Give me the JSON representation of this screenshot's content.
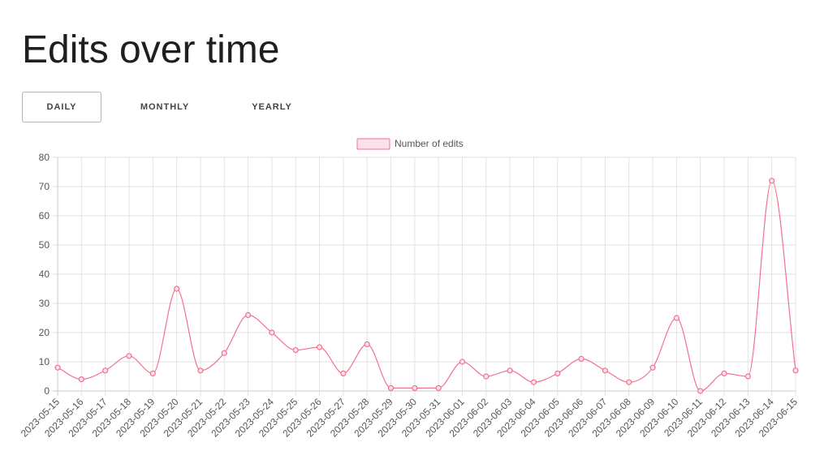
{
  "page": {
    "title": "Edits over time"
  },
  "tabs": [
    {
      "label": "DAILY",
      "active": true
    },
    {
      "label": "MONTHLY",
      "active": false
    },
    {
      "label": "YEARLY",
      "active": false
    }
  ],
  "colors": {
    "series": "#f3708f",
    "series_fill": "#fde1e8",
    "grid": "#e2e2e2",
    "text": "#555555"
  },
  "chart_data": {
    "type": "line",
    "title": "",
    "xlabel": "",
    "ylabel": "",
    "ylim": [
      0,
      80
    ],
    "yticks": [
      0,
      10,
      20,
      30,
      40,
      50,
      60,
      70,
      80
    ],
    "grid": true,
    "legend_position": "top-center",
    "categories": [
      "2023-05-15",
      "2023-05-16",
      "2023-05-17",
      "2023-05-18",
      "2023-05-19",
      "2023-05-20",
      "2023-05-21",
      "2023-05-22",
      "2023-05-23",
      "2023-05-24",
      "2023-05-25",
      "2023-05-26",
      "2023-05-27",
      "2023-05-28",
      "2023-05-29",
      "2023-05-30",
      "2023-05-31",
      "2023-06-01",
      "2023-06-02",
      "2023-06-03",
      "2023-06-04",
      "2023-06-05",
      "2023-06-06",
      "2023-06-07",
      "2023-06-08",
      "2023-06-09",
      "2023-06-10",
      "2023-06-11",
      "2023-06-12",
      "2023-06-13",
      "2023-06-14",
      "2023-06-15"
    ],
    "series": [
      {
        "name": "Number of edits",
        "values": [
          8,
          4,
          7,
          12,
          6,
          35,
          7,
          13,
          26,
          20,
          14,
          15,
          6,
          16,
          1,
          1,
          1,
          10,
          5,
          7,
          3,
          6,
          11,
          7,
          3,
          8,
          25,
          0,
          6,
          5,
          72,
          7
        ]
      }
    ]
  }
}
